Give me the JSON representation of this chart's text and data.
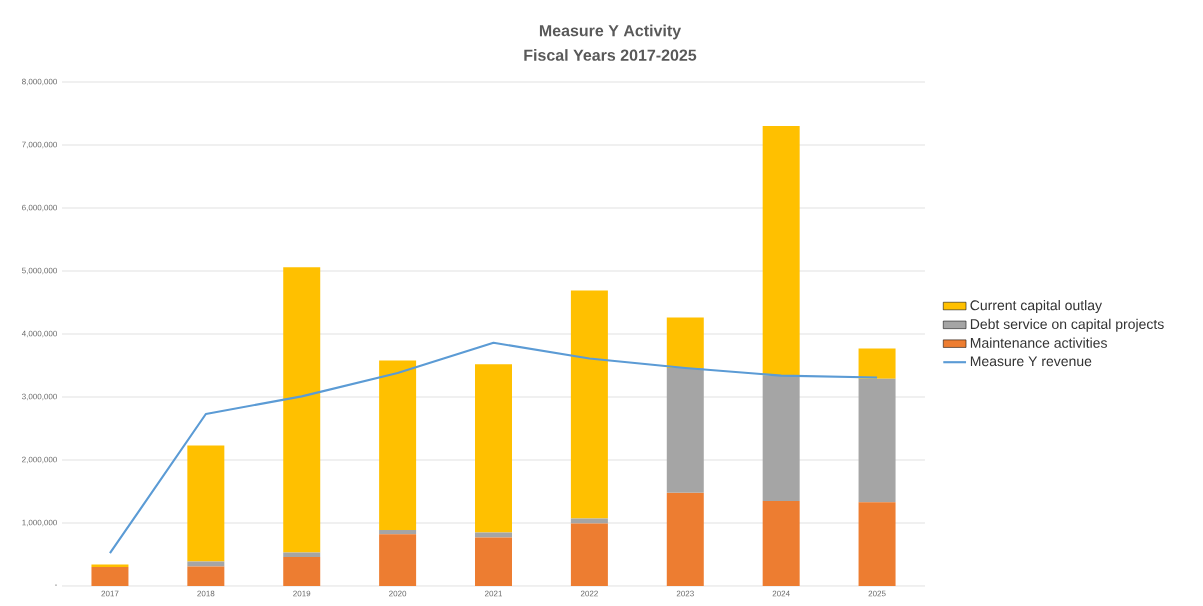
{
  "chart_data": {
    "type": "bar",
    "title": "Measure Y Activity",
    "subtitle": "Fiscal Years 2017-2025",
    "categories": [
      "2017",
      "2018",
      "2019",
      "2020",
      "2021",
      "2022",
      "2023",
      "2024",
      "2025"
    ],
    "stacked": true,
    "series": [
      {
        "name": "Maintenance activities",
        "color": "#ed7d31",
        "values": [
          300000,
          310000,
          460000,
          820000,
          770000,
          990000,
          1480000,
          1350000,
          1330000
        ]
      },
      {
        "name": "Debt service on capital projects",
        "color": "#a5a5a5",
        "values": [
          0,
          80000,
          70000,
          70000,
          80000,
          80000,
          1980000,
          1990000,
          1960000
        ]
      },
      {
        "name": "Current capital outlay",
        "color": "#ffc000",
        "values": [
          40000,
          1840000,
          4530000,
          2690000,
          2670000,
          3620000,
          800000,
          3960000,
          480000
        ]
      },
      {
        "name": "Measure Y revenue",
        "type": "line",
        "color": "#5b9bd5",
        "values": [
          520000,
          2730000,
          3010000,
          3380000,
          3860000,
          3610000,
          3460000,
          3340000,
          3310000
        ]
      }
    ],
    "ylim": [
      0,
      8000000
    ],
    "yticks": [
      {
        "value": 0,
        "label": "-"
      },
      {
        "value": 1000000,
        "label": "1,000,000"
      },
      {
        "value": 2000000,
        "label": "2,000,000"
      },
      {
        "value": 3000000,
        "label": "3,000,000"
      },
      {
        "value": 4000000,
        "label": "4,000,000"
      },
      {
        "value": 5000000,
        "label": "5,000,000"
      },
      {
        "value": 6000000,
        "label": "6,000,000"
      },
      {
        "value": 7000000,
        "label": "7,000,000"
      },
      {
        "value": 8000000,
        "label": "8,000,000"
      }
    ],
    "grid": "y",
    "legend": "right"
  }
}
